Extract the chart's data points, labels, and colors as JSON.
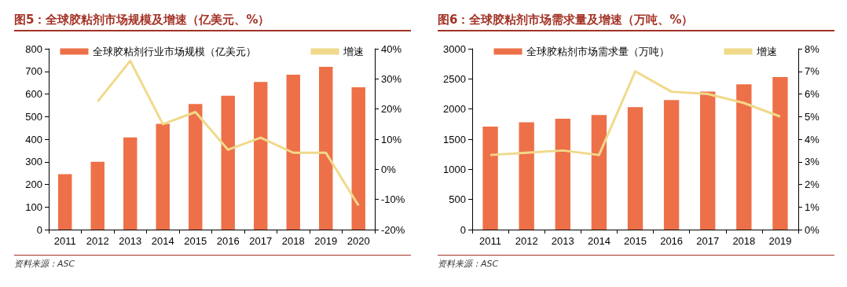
{
  "chart_data": [
    {
      "type": "bar",
      "title": "图5：全球胶粘剂市场规模及增速（亿美元、%）",
      "categories": [
        "2011",
        "2012",
        "2013",
        "2014",
        "2015",
        "2016",
        "2017",
        "2018",
        "2019",
        "2020"
      ],
      "series": [
        {
          "name": "全球胶粘剂行业市场规模（亿美元）",
          "color": "#ed7048",
          "values": [
            245,
            300,
            408,
            468,
            556,
            592,
            653,
            685,
            720,
            630
          ]
        },
        {
          "name": "增速",
          "type": "line",
          "axis": "y2",
          "color": "#f0d98a",
          "values": [
            null,
            22.5,
            36,
            15,
            19,
            6.5,
            10.5,
            5.5,
            5.5,
            -12
          ]
        }
      ],
      "ylim": [
        0,
        800
      ],
      "yticks": [
        0,
        100,
        200,
        300,
        400,
        500,
        600,
        700,
        800
      ],
      "y2lim": [
        -20,
        40
      ],
      "y2ticks": [
        {
          "value": -20,
          "label": "-20%"
        },
        {
          "value": -10,
          "label": "-10%"
        },
        {
          "value": 0,
          "label": "0%"
        },
        {
          "value": 10,
          "label": "10%"
        },
        {
          "value": 20,
          "label": "20%"
        },
        {
          "value": 30,
          "label": "30%"
        },
        {
          "value": 40,
          "label": "40%"
        }
      ],
      "legend": "top",
      "grid": false,
      "marker": "none",
      "annotations": [
        "资料来源：ASC"
      ]
    },
    {
      "type": "bar",
      "title": "图6：全球胶粘剂市场需求量及增速（万吨、%）",
      "categories": [
        "2011",
        "2012",
        "2013",
        "2014",
        "2015",
        "2016",
        "2017",
        "2018",
        "2019"
      ],
      "series": [
        {
          "name": "全球胶粘剂市场需求量（万吨）",
          "color": "#ed7048",
          "values": [
            1710,
            1780,
            1840,
            1900,
            2030,
            2150,
            2290,
            2410,
            2530
          ]
        },
        {
          "name": "增速",
          "type": "line",
          "axis": "y2",
          "color": "#f0d98a",
          "values": [
            3.3,
            3.4,
            3.5,
            3.3,
            7.0,
            6.1,
            6.0,
            5.6,
            5.0
          ]
        }
      ],
      "ylim": [
        0,
        3000
      ],
      "yticks": [
        0,
        500,
        1000,
        1500,
        2000,
        2500,
        3000
      ],
      "y2lim": [
        0,
        8
      ],
      "y2ticks": [
        {
          "value": 0,
          "label": "0%"
        },
        {
          "value": 1,
          "label": "1%"
        },
        {
          "value": 2,
          "label": "2%"
        },
        {
          "value": 3,
          "label": "3%"
        },
        {
          "value": 4,
          "label": "4%"
        },
        {
          "value": 5,
          "label": "5%"
        },
        {
          "value": 6,
          "label": "6%"
        },
        {
          "value": 7,
          "label": "7%"
        },
        {
          "value": 8,
          "label": "8%"
        }
      ],
      "legend": "top",
      "grid": false,
      "marker": "none",
      "annotations": [
        "资料来源：ASC"
      ]
    }
  ]
}
